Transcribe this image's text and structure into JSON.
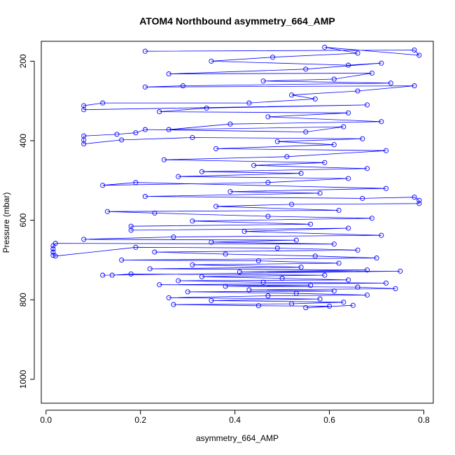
{
  "chart_data": {
    "type": "scatter",
    "title": "ATOM4 Northbound asymmetry_664_AMP",
    "xlabel": "asymmetry_664_AMP",
    "ylabel": "Pressure (mbar)",
    "xlim": [
      -0.01,
      0.82
    ],
    "ylim": [
      1060,
      150
    ],
    "y_reversed": true,
    "x_ticks": [
      0.0,
      0.2,
      0.4,
      0.6,
      0.8
    ],
    "x_tick_labels": [
      "0.0",
      "0.2",
      "0.4",
      "0.6",
      "0.8"
    ],
    "y_ticks": [
      200,
      400,
      600,
      800,
      1000
    ],
    "y_tick_labels": [
      "200",
      "400",
      "600",
      "800",
      "1000"
    ],
    "grid": false,
    "legend": "none",
    "marker": "open-circle",
    "line": true,
    "colors": {
      "series": "#0000ff",
      "axis": "#000000",
      "background": "#ffffff"
    },
    "series": [
      {
        "pressure_range": [
          150,
          825
        ],
        "points": [
          [
            0.21,
            175
          ],
          [
            0.78,
            172
          ],
          [
            0.79,
            185
          ],
          [
            0.59,
            165
          ],
          [
            0.66,
            180
          ],
          [
            0.48,
            190
          ],
          [
            0.35,
            200
          ],
          [
            0.64,
            210
          ],
          [
            0.71,
            205
          ],
          [
            0.55,
            220
          ],
          [
            0.26,
            232
          ],
          [
            0.69,
            230
          ],
          [
            0.61,
            245
          ],
          [
            0.46,
            250
          ],
          [
            0.73,
            255
          ],
          [
            0.29,
            262
          ],
          [
            0.21,
            265
          ],
          [
            0.78,
            262
          ],
          [
            0.66,
            275
          ],
          [
            0.52,
            285
          ],
          [
            0.57,
            295
          ],
          [
            0.43,
            305
          ],
          [
            0.12,
            305
          ],
          [
            0.08,
            312
          ],
          [
            0.08,
            322
          ],
          [
            0.68,
            310
          ],
          [
            0.34,
            318
          ],
          [
            0.24,
            327
          ],
          [
            0.64,
            330
          ],
          [
            0.47,
            340
          ],
          [
            0.71,
            352
          ],
          [
            0.39,
            358
          ],
          [
            0.26,
            372
          ],
          [
            0.63,
            365
          ],
          [
            0.55,
            378
          ],
          [
            0.21,
            372
          ],
          [
            0.19,
            380
          ],
          [
            0.15,
            384
          ],
          [
            0.08,
            388
          ],
          [
            0.08,
            398
          ],
          [
            0.08,
            408
          ],
          [
            0.16,
            398
          ],
          [
            0.31,
            392
          ],
          [
            0.67,
            395
          ],
          [
            0.49,
            402
          ],
          [
            0.61,
            410
          ],
          [
            0.36,
            420
          ],
          [
            0.72,
            425
          ],
          [
            0.51,
            440
          ],
          [
            0.25,
            448
          ],
          [
            0.59,
            455
          ],
          [
            0.44,
            462
          ],
          [
            0.68,
            470
          ],
          [
            0.33,
            478
          ],
          [
            0.54,
            482
          ],
          [
            0.28,
            490
          ],
          [
            0.64,
            495
          ],
          [
            0.47,
            505
          ],
          [
            0.12,
            512
          ],
          [
            0.19,
            505
          ],
          [
            0.72,
            520
          ],
          [
            0.39,
            528
          ],
          [
            0.58,
            532
          ],
          [
            0.21,
            540
          ],
          [
            0.67,
            545
          ],
          [
            0.78,
            542
          ],
          [
            0.79,
            550
          ],
          [
            0.79,
            558
          ],
          [
            0.52,
            560
          ],
          [
            0.36,
            565
          ],
          [
            0.62,
            575
          ],
          [
            0.13,
            578
          ],
          [
            0.23,
            582
          ],
          [
            0.47,
            590
          ],
          [
            0.69,
            595
          ],
          [
            0.31,
            602
          ],
          [
            0.56,
            610
          ],
          [
            0.18,
            615
          ],
          [
            0.18,
            625
          ],
          [
            0.64,
            620
          ],
          [
            0.42,
            628
          ],
          [
            0.71,
            638
          ],
          [
            0.27,
            642
          ],
          [
            0.08,
            648
          ],
          [
            0.53,
            650
          ],
          [
            0.35,
            655
          ],
          [
            0.61,
            660
          ],
          [
            0.02,
            658
          ],
          [
            0.015,
            664
          ],
          [
            0.015,
            672
          ],
          [
            0.015,
            680
          ],
          [
            0.015,
            688
          ],
          [
            0.02,
            690
          ],
          [
            0.19,
            668
          ],
          [
            0.49,
            670
          ],
          [
            0.66,
            675
          ],
          [
            0.23,
            680
          ],
          [
            0.38,
            685
          ],
          [
            0.57,
            690
          ],
          [
            0.7,
            695
          ],
          [
            0.16,
            700
          ],
          [
            0.45,
            702
          ],
          [
            0.62,
            708
          ],
          [
            0.31,
            712
          ],
          [
            0.54,
            718
          ],
          [
            0.22,
            722
          ],
          [
            0.68,
            725
          ],
          [
            0.41,
            730
          ],
          [
            0.75,
            728
          ],
          [
            0.12,
            738
          ],
          [
            0.14,
            738
          ],
          [
            0.18,
            735
          ],
          [
            0.59,
            738
          ],
          [
            0.33,
            742
          ],
          [
            0.5,
            746
          ],
          [
            0.64,
            750
          ],
          [
            0.28,
            752
          ],
          [
            0.46,
            756
          ],
          [
            0.72,
            758
          ],
          [
            0.24,
            762
          ],
          [
            0.56,
            764
          ],
          [
            0.38,
            766
          ],
          [
            0.66,
            768
          ],
          [
            0.74,
            772
          ],
          [
            0.43,
            775
          ],
          [
            0.61,
            778
          ],
          [
            0.3,
            780
          ],
          [
            0.53,
            784
          ],
          [
            0.68,
            788
          ],
          [
            0.47,
            790
          ],
          [
            0.26,
            795
          ],
          [
            0.58,
            798
          ],
          [
            0.35,
            802
          ],
          [
            0.63,
            806
          ],
          [
            0.52,
            810
          ],
          [
            0.27,
            812
          ],
          [
            0.45,
            815
          ],
          [
            0.6,
            816
          ],
          [
            0.55,
            820
          ],
          [
            0.65,
            814
          ]
        ]
      }
    ]
  }
}
